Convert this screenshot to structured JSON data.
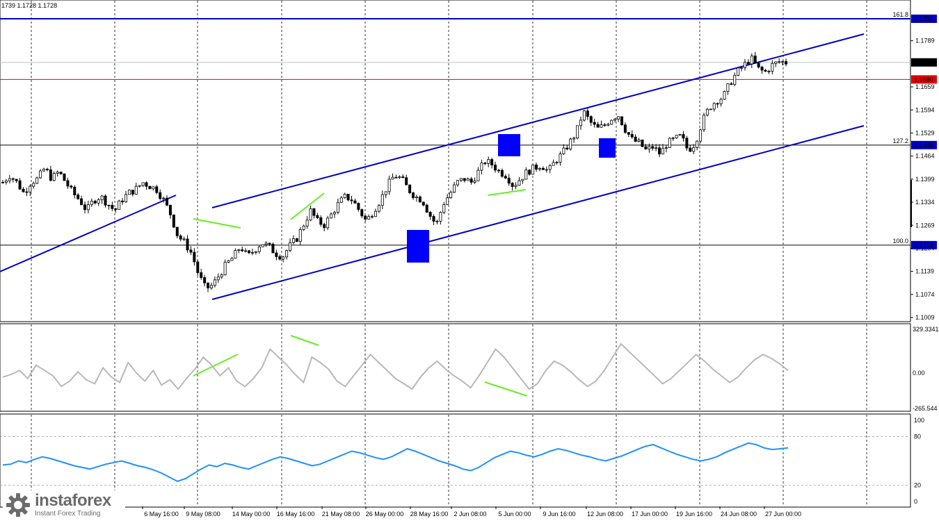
{
  "header": {
    "ohlc_text": "1739 1.1728 1.1728"
  },
  "brand": {
    "name": "instaforex",
    "tagline": "Instant Forex Trading",
    "logo_icon": "gear-icon"
  },
  "colors": {
    "channel": "#0000c8",
    "fib_line": "#000000",
    "price_line": "#c0c0c0",
    "level_1680": "#e00000",
    "divergence": "#66ee22",
    "signal_box": "#0000ff",
    "cci": "#b8b8b8",
    "rsi": "#1e90ff",
    "candle_up": "#ffffff",
    "candle_down": "#000000"
  },
  "chart_data": [
    {
      "type": "candlestick",
      "panel": "price",
      "ylim": [
        1.1009,
        1.1851
      ],
      "y_ticks": [
        "1.1789",
        "1.1659",
        "1.1594",
        "1.1529",
        "1.1464",
        "1.1399",
        "1.1334",
        "1.1269",
        "1.1204",
        "1.1139",
        "1.1074",
        "1.1009"
      ],
      "x_labels": [
        "6 May 16:00",
        "9 May 08:00",
        "14 May 00:00",
        "16 May 16:00",
        "21 May 08:00",
        "26 May 00:00",
        "28 May 16:00",
        "2 Jun 08:00",
        "5 Jun 00:00",
        "9 Jun 16:00",
        "12 Jun 08:00",
        "17 Jun 00:00",
        "19 Jun 16:00",
        "24 Jun 08:00",
        "27 Jun 00:00"
      ],
      "levels": [
        {
          "label": "161.8",
          "price": 1.1851,
          "tag": "1.1851",
          "style": "channel"
        },
        {
          "label": "127.2",
          "price": 1.1495,
          "tag": "1.1495",
          "style": "fib"
        },
        {
          "label": "100.0",
          "price": 1.1213,
          "tag": "1.1213",
          "style": "fib"
        },
        {
          "label": "",
          "price": 1.168,
          "tag": "1.1680",
          "style": "red"
        },
        {
          "label": "",
          "price": 1.1728,
          "tag": "1.1728",
          "style": "current"
        }
      ],
      "price_path": [
        1.139,
        1.141,
        1.139,
        1.136,
        1.139,
        1.14,
        1.143,
        1.14,
        1.142,
        1.139,
        1.136,
        1.134,
        1.131,
        1.134,
        1.135,
        1.133,
        1.131,
        1.134,
        1.136,
        1.137,
        1.139,
        1.138,
        1.137,
        1.134,
        1.13,
        1.124,
        1.122,
        1.119,
        1.113,
        1.109,
        1.11,
        1.113,
        1.116,
        1.118,
        1.121,
        1.118,
        1.12,
        1.122,
        1.121,
        1.119,
        1.118,
        1.121,
        1.123,
        1.127,
        1.131,
        1.128,
        1.127,
        1.13,
        1.133,
        1.135,
        1.134,
        1.131,
        1.128,
        1.131,
        1.134,
        1.138,
        1.141,
        1.14,
        1.137,
        1.135,
        1.134,
        1.13,
        1.127,
        1.133,
        1.136,
        1.139,
        1.14,
        1.139,
        1.142,
        1.145,
        1.144,
        1.142,
        1.141,
        1.138,
        1.14,
        1.142,
        1.143,
        1.144,
        1.142,
        1.145,
        1.147,
        1.15,
        1.153,
        1.159,
        1.156,
        1.154,
        1.155,
        1.157,
        1.158,
        1.154,
        1.151,
        1.15,
        1.148,
        1.149,
        1.147,
        1.15,
        1.151,
        1.152,
        1.148,
        1.15,
        1.156,
        1.16,
        1.162,
        1.163,
        1.167,
        1.17,
        1.172,
        1.174,
        1.171,
        1.17,
        1.172,
        1.173,
        1.1728
      ],
      "candles": 230
    },
    {
      "type": "line",
      "panel": "cci",
      "ylim": [
        -265.544,
        329.3341
      ],
      "y_ticks": [
        "329.3341",
        "0.00",
        "-265.544"
      ],
      "values": [
        -30,
        -10,
        20,
        -40,
        60,
        20,
        -20,
        -100,
        -60,
        10,
        -50,
        -80,
        40,
        -30,
        -70,
        80,
        0,
        -60,
        20,
        -90,
        -50,
        -120,
        -40,
        30,
        120,
        60,
        -20,
        40,
        -60,
        -100,
        -40,
        40,
        180,
        120,
        60,
        -10,
        -70,
        120,
        80,
        30,
        -60,
        -100,
        -20,
        60,
        140,
        80,
        20,
        -40,
        -80,
        -120,
        -30,
        40,
        90,
        30,
        -20,
        -60,
        -110,
        -20,
        80,
        180,
        120,
        40,
        -40,
        -120,
        -80,
        20,
        90,
        60,
        10,
        -50,
        -100,
        -60,
        20,
        120,
        220,
        160,
        100,
        40,
        -20,
        -80,
        -40,
        20,
        80,
        140,
        90,
        30,
        -20,
        -70,
        -30,
        40,
        100,
        140,
        110,
        70,
        20
      ]
    },
    {
      "type": "line",
      "panel": "rsi",
      "ylim": [
        0,
        100
      ],
      "y_ticks": [
        "100",
        "80",
        "20",
        "0"
      ],
      "levels": [
        80,
        20
      ],
      "values": [
        45,
        46,
        50,
        48,
        52,
        55,
        53,
        50,
        47,
        44,
        42,
        40,
        43,
        46,
        48,
        50,
        47,
        44,
        42,
        39,
        35,
        30,
        25,
        28,
        34,
        40,
        45,
        43,
        47,
        45,
        42,
        40,
        44,
        48,
        52,
        55,
        53,
        50,
        47,
        44,
        46,
        50,
        54,
        58,
        62,
        60,
        57,
        54,
        52,
        55,
        60,
        65,
        62,
        58,
        54,
        50,
        47,
        44,
        40,
        38,
        42,
        48,
        54,
        58,
        62,
        60,
        57,
        55,
        58,
        62,
        65,
        63,
        60,
        57,
        55,
        52,
        50,
        53,
        56,
        60,
        64,
        68,
        70,
        66,
        62,
        58,
        55,
        52,
        50,
        52,
        55,
        60,
        64,
        68,
        72,
        70,
        66,
        64,
        65,
        66
      ]
    }
  ]
}
